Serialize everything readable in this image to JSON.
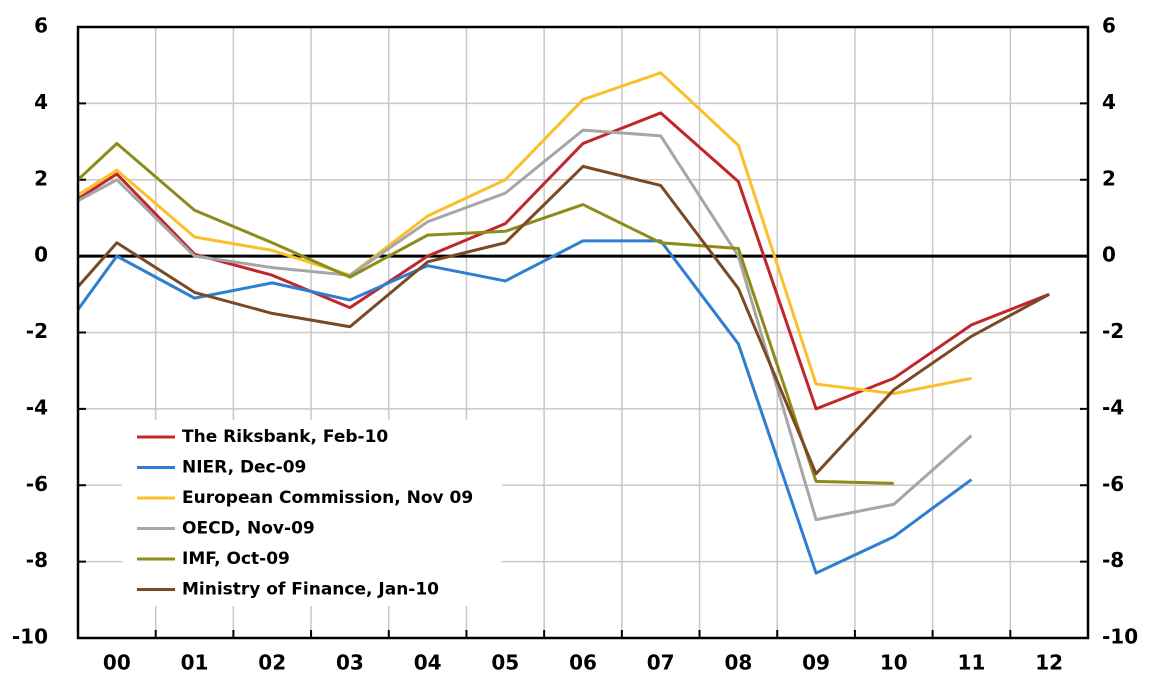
{
  "chart_data": {
    "type": "line",
    "x": [
      1999,
      2000,
      2001,
      2002,
      2003,
      2004,
      2005,
      2006,
      2007,
      2008,
      2009,
      2010,
      2011,
      2012
    ],
    "xlim": [
      1999.5,
      2012.5
    ],
    "xticks": [
      {
        "value": 2000,
        "label": "00"
      },
      {
        "value": 2001,
        "label": "01"
      },
      {
        "value": 2002,
        "label": "02"
      },
      {
        "value": 2003,
        "label": "03"
      },
      {
        "value": 2004,
        "label": "04"
      },
      {
        "value": 2005,
        "label": "05"
      },
      {
        "value": 2006,
        "label": "06"
      },
      {
        "value": 2007,
        "label": "07"
      },
      {
        "value": 2008,
        "label": "08"
      },
      {
        "value": 2009,
        "label": "09"
      },
      {
        "value": 2010,
        "label": "10"
      },
      {
        "value": 2011,
        "label": "11"
      },
      {
        "value": 2012,
        "label": "12"
      }
    ],
    "ylim": [
      -10,
      6
    ],
    "yticks": [
      6,
      4,
      2,
      0,
      -2,
      -4,
      -6,
      -8,
      -10
    ],
    "y2lim": [
      -10,
      6
    ],
    "y2ticks": [
      6,
      4,
      2,
      0,
      -2,
      -4,
      -6,
      -8,
      -10
    ],
    "grid": true,
    "series": [
      {
        "name": "The Riksbank, Feb-10",
        "color": "#c0262c",
        "values": [
          0.85,
          2.15,
          0.05,
          -0.5,
          -1.35,
          0.0,
          0.85,
          2.95,
          3.75,
          1.95,
          -4.0,
          -3.2,
          -1.8,
          -1.0
        ]
      },
      {
        "name": "NIER, Dec-09",
        "color": "#2f7fd0",
        "values": [
          -2.8,
          0.0,
          -1.1,
          -0.7,
          -1.15,
          -0.25,
          -0.65,
          0.4,
          0.4,
          -2.3,
          -8.3,
          -7.35,
          -5.85,
          null
        ]
      },
      {
        "name": "European Commission, Nov 09",
        "color": "#fbbf2b",
        "values": [
          0.95,
          2.25,
          0.5,
          0.15,
          -0.5,
          1.05,
          2.0,
          4.1,
          4.8,
          2.9,
          -3.35,
          -3.6,
          -3.2,
          null
        ]
      },
      {
        "name": "OECD, Nov-09",
        "color": "#a6a6a6",
        "values": [
          0.9,
          2.0,
          0.0,
          -0.3,
          -0.5,
          0.9,
          1.65,
          3.3,
          3.15,
          0.0,
          -6.9,
          -6.5,
          -4.7,
          null
        ]
      },
      {
        "name": "IMF, Oct-09",
        "color": "#8c8c1a",
        "values": [
          1.05,
          2.95,
          1.2,
          0.35,
          -0.55,
          0.55,
          0.65,
          1.35,
          0.35,
          0.2,
          -5.9,
          -5.95,
          null,
          null
        ]
      },
      {
        "name": "Ministry of Finance, Jan-10",
        "color": "#7b4a24",
        "values": [
          -1.95,
          0.35,
          -0.95,
          -1.5,
          -1.85,
          -0.15,
          0.35,
          2.35,
          1.85,
          -0.85,
          -5.7,
          -3.5,
          -2.1,
          -1.0
        ]
      }
    ]
  }
}
